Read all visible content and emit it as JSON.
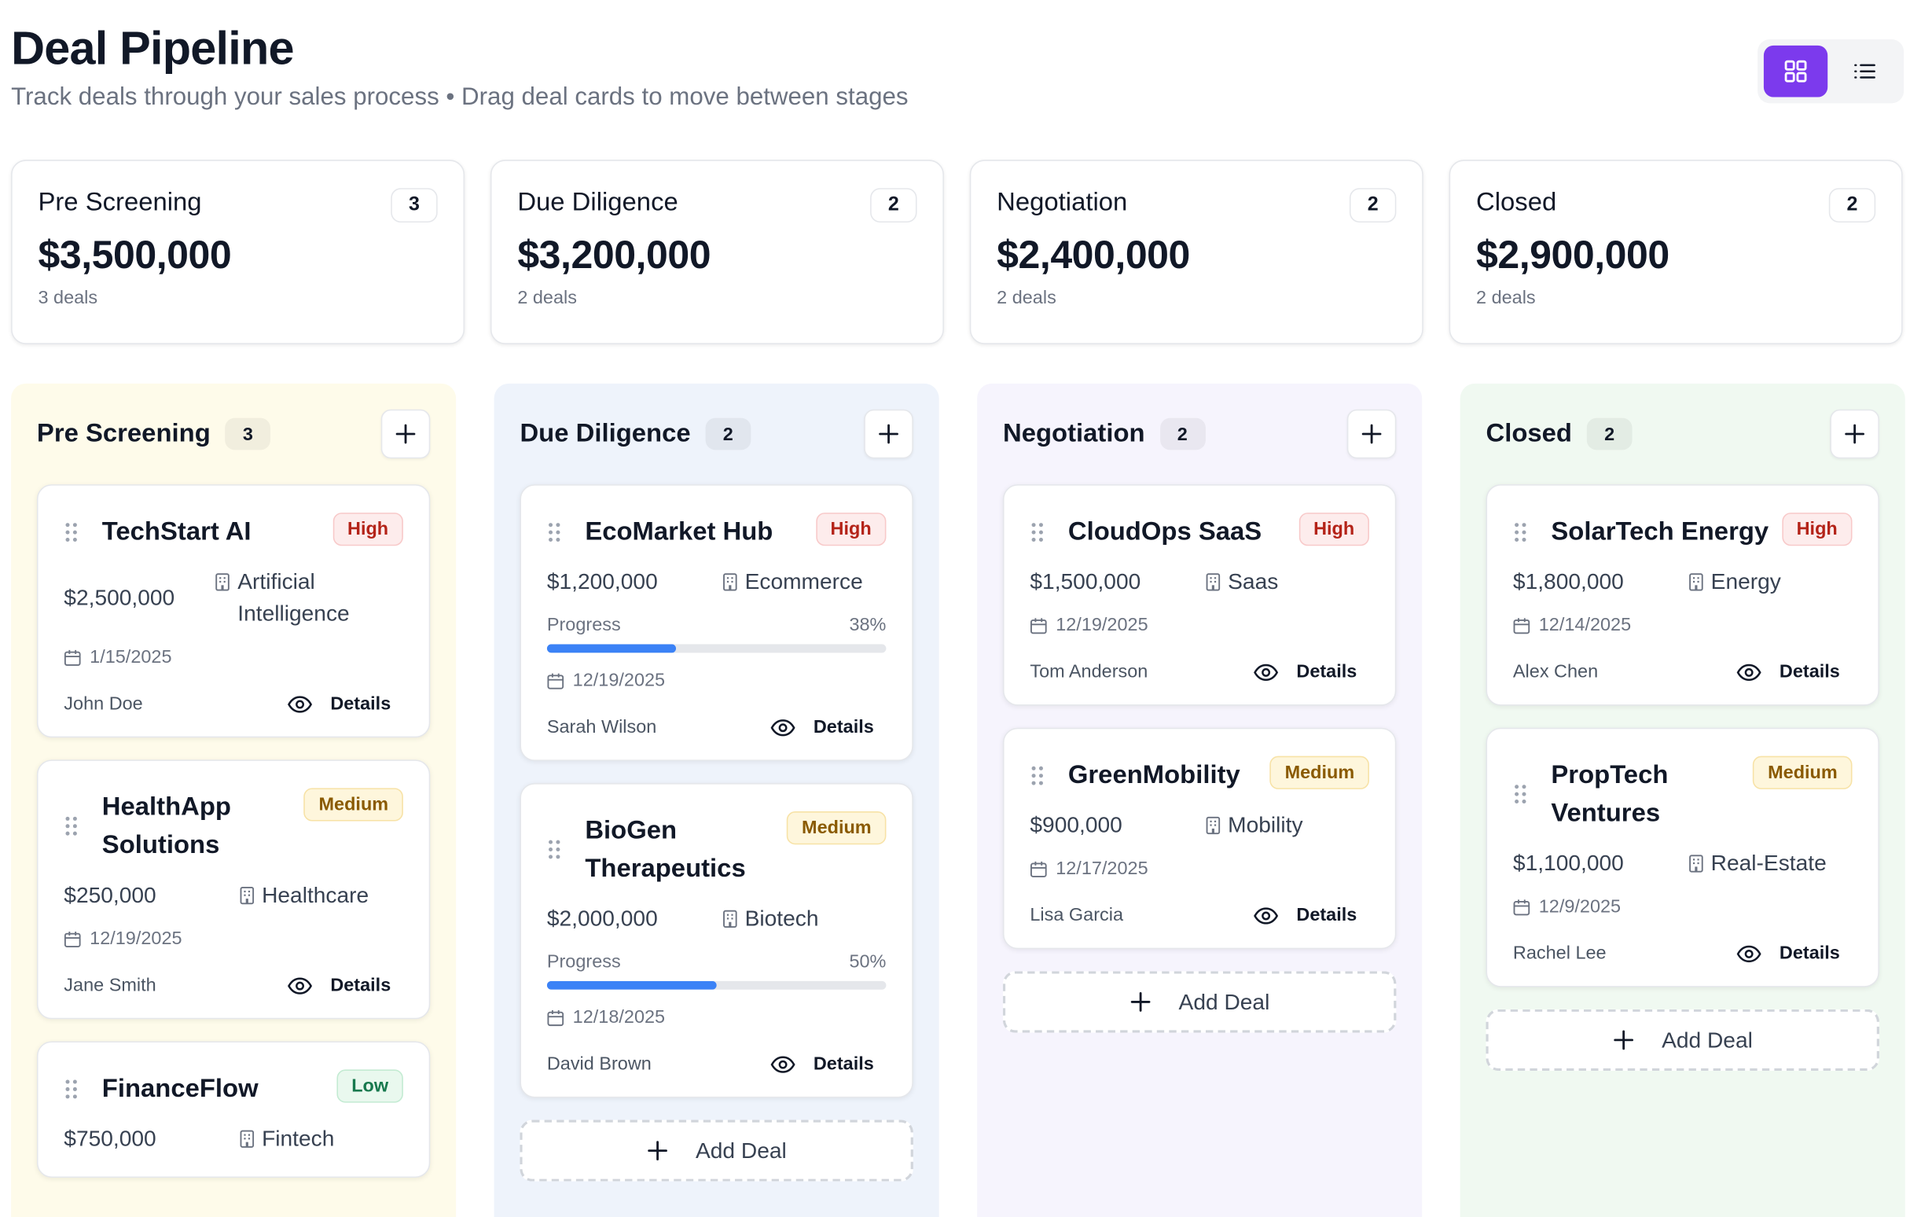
{
  "header": {
    "title": "Deal Pipeline",
    "subtitle": "Track deals through your sales process • Drag deal cards to move between stages"
  },
  "colors": {
    "accent": "#7c3aed",
    "progress": "#3b82f6"
  },
  "summary": [
    {
      "name": "Pre Screening",
      "count": "3",
      "value": "$3,500,000",
      "sub": "3 deals"
    },
    {
      "name": "Due Diligence",
      "count": "2",
      "value": "$3,200,000",
      "sub": "2 deals"
    },
    {
      "name": "Negotiation",
      "count": "2",
      "value": "$2,400,000",
      "sub": "2 deals"
    },
    {
      "name": "Closed",
      "count": "2",
      "value": "$2,900,000",
      "sub": "2 deals"
    }
  ],
  "add_deal_label": "Add Deal",
  "columns": [
    {
      "title": "Pre Screening",
      "count": "3",
      "deals": [
        {
          "name": "TechStart AI",
          "priority": "High",
          "amount": "$2,500,000",
          "industry": "Artificial Intelligence",
          "date": "1/15/2025",
          "owner": "John Doe",
          "details": "Details"
        },
        {
          "name": "HealthApp Solutions",
          "priority": "Medium",
          "amount": "$250,000",
          "industry": "Healthcare",
          "date": "12/19/2025",
          "owner": "Jane Smith",
          "details": "Details"
        },
        {
          "name": "FinanceFlow",
          "priority": "Low",
          "amount": "$750,000",
          "industry": "Fintech"
        }
      ]
    },
    {
      "title": "Due Diligence",
      "count": "2",
      "deals": [
        {
          "name": "EcoMarket Hub",
          "priority": "High",
          "amount": "$1,200,000",
          "industry": "Ecommerce",
          "progress_label": "Progress",
          "progress_text": "38%",
          "progress": 0.38,
          "date": "12/19/2025",
          "owner": "Sarah Wilson",
          "details": "Details"
        },
        {
          "name": "BioGen Therapeutics",
          "priority": "Medium",
          "amount": "$2,000,000",
          "industry": "Biotech",
          "progress_label": "Progress",
          "progress_text": "50%",
          "progress": 0.5,
          "date": "12/18/2025",
          "owner": "David Brown",
          "details": "Details"
        }
      ]
    },
    {
      "title": "Negotiation",
      "count": "2",
      "deals": [
        {
          "name": "CloudOps SaaS",
          "priority": "High",
          "amount": "$1,500,000",
          "industry": "Saas",
          "date": "12/19/2025",
          "owner": "Tom Anderson",
          "details": "Details"
        },
        {
          "name": "GreenMobility",
          "priority": "Medium",
          "amount": "$900,000",
          "industry": "Mobility",
          "date": "12/17/2025",
          "owner": "Lisa Garcia",
          "details": "Details"
        }
      ]
    },
    {
      "title": "Closed",
      "count": "2",
      "deals": [
        {
          "name": "SolarTech Energy",
          "priority": "High",
          "amount": "$1,800,000",
          "industry": "Energy",
          "date": "12/14/2025",
          "owner": "Alex Chen",
          "details": "Details"
        },
        {
          "name": "PropTech Ventures",
          "priority": "Medium",
          "amount": "$1,100,000",
          "industry": "Real-Estate",
          "date": "12/9/2025",
          "owner": "Rachel Lee",
          "details": "Details"
        }
      ]
    }
  ]
}
